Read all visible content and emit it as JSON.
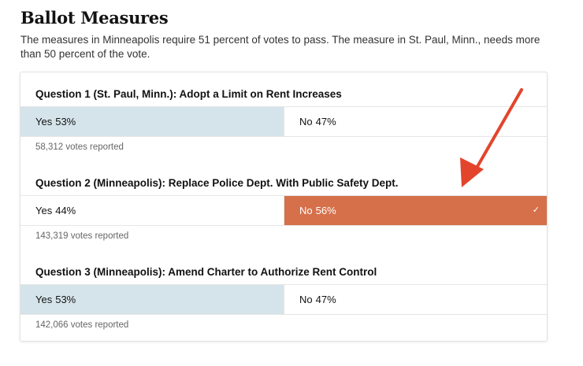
{
  "header": {
    "title": "Ballot Measures",
    "subtitle": "The measures in Minneapolis require 51 percent of votes to pass. The measure in St. Paul, Minn., needs more than 50 percent of the vote."
  },
  "colors": {
    "yes_winner_fill": "#d5e4ea",
    "no_winner_fill": "#d6704a",
    "arrow": "#e2452c"
  },
  "chart_data": {
    "type": "table",
    "measures": [
      {
        "title": "Question 1 (St. Paul, Minn.): Adopt a Limit on Rent Increases",
        "yes_label": "Yes",
        "yes_value": "53%",
        "yes_pct": 53,
        "no_label": "No",
        "no_value": "47%",
        "no_pct": 47,
        "winner": "yes",
        "votes_reported": "58,312 votes reported"
      },
      {
        "title": "Question 2 (Minneapolis): Replace Police Dept. With Public Safety Dept.",
        "yes_label": "Yes",
        "yes_value": "44%",
        "yes_pct": 44,
        "no_label": "No",
        "no_value": "56%",
        "no_pct": 56,
        "winner": "no",
        "winner_mark": "✓",
        "votes_reported": "143,319 votes reported"
      },
      {
        "title": "Question 3 (Minneapolis): Amend Charter to Authorize Rent Control",
        "yes_label": "Yes",
        "yes_value": "53%",
        "yes_pct": 53,
        "no_label": "No",
        "no_value": "47%",
        "no_pct": 47,
        "winner": "yes",
        "votes_reported": "142,066 votes reported"
      }
    ]
  }
}
